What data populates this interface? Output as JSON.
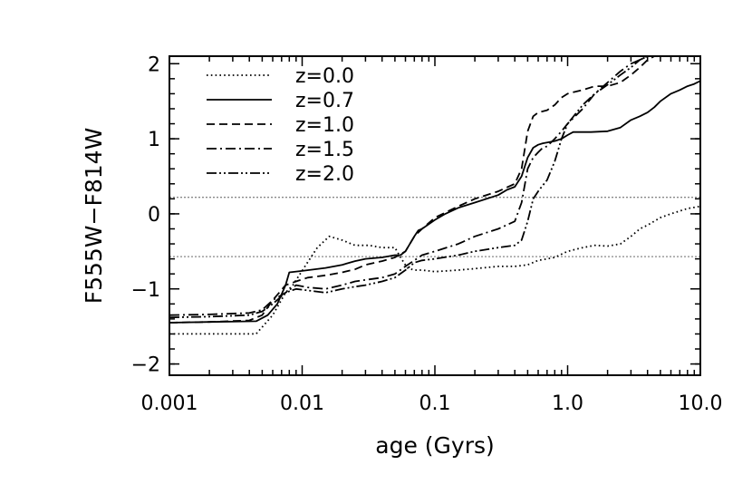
{
  "chart_data": {
    "type": "line",
    "title": "",
    "xlabel": "age (Gyrs)",
    "ylabel": "F555W−F814W",
    "xscale": "log",
    "xlim": [
      0.001,
      10.0
    ],
    "ylim": [
      -2.15,
      2.1
    ],
    "xticks": [
      {
        "value": 0.001,
        "label": "0.001"
      },
      {
        "value": 0.01,
        "label": "0.01"
      },
      {
        "value": 0.1,
        "label": "0.1"
      },
      {
        "value": 1.0,
        "label": "1.0"
      },
      {
        "value": 10.0,
        "label": "10.0"
      }
    ],
    "yticks": [
      {
        "value": -2,
        "label": "−2"
      },
      {
        "value": -1,
        "label": "−1"
      },
      {
        "value": 0,
        "label": "0"
      },
      {
        "value": 1,
        "label": "1"
      },
      {
        "value": 2,
        "label": "2"
      }
    ],
    "reference_lines": [
      {
        "y": 0.22,
        "style": "dotted",
        "color": "#888888"
      },
      {
        "y": -0.57,
        "style": "dotted",
        "color": "#888888"
      }
    ],
    "legend_position": "top-left",
    "series": [
      {
        "name": "z=0.0",
        "dash": "dotted",
        "x": [
          0.001,
          0.002,
          0.0045,
          0.006,
          0.0075,
          0.0085,
          0.0105,
          0.013,
          0.016,
          0.02,
          0.025,
          0.032,
          0.04,
          0.05,
          0.056,
          0.062,
          0.07,
          0.08,
          0.1,
          0.15,
          0.2,
          0.3,
          0.4,
          0.5,
          0.6,
          0.7,
          0.8,
          1.0,
          1.3,
          1.6,
          2.0,
          2.5,
          3.0,
          3.5,
          4.0,
          5.0,
          6.0,
          8.0,
          10.0
        ],
        "y": [
          -1.6,
          -1.6,
          -1.6,
          -1.35,
          -1.05,
          -0.95,
          -0.7,
          -0.45,
          -0.3,
          -0.35,
          -0.42,
          -0.42,
          -0.45,
          -0.45,
          -0.6,
          -0.72,
          -0.75,
          -0.75,
          -0.77,
          -0.75,
          -0.73,
          -0.7,
          -0.7,
          -0.68,
          -0.62,
          -0.6,
          -0.58,
          -0.5,
          -0.45,
          -0.42,
          -0.43,
          -0.4,
          -0.3,
          -0.2,
          -0.15,
          -0.05,
          0.0,
          0.07,
          0.1
        ]
      },
      {
        "name": "z=0.7",
        "dash": "solid",
        "x": [
          0.001,
          0.002,
          0.0045,
          0.0055,
          0.0065,
          0.0075,
          0.008,
          0.01,
          0.015,
          0.02,
          0.025,
          0.03,
          0.04,
          0.05,
          0.055,
          0.06,
          0.07,
          0.075,
          0.08,
          0.1,
          0.12,
          0.15,
          0.2,
          0.3,
          0.35,
          0.4,
          0.45,
          0.5,
          0.55,
          0.6,
          0.65,
          0.7,
          0.8,
          0.9,
          1.0,
          1.1,
          1.5,
          2.0,
          2.5,
          3.0,
          3.5,
          4.0,
          4.5,
          5.0,
          6.0,
          7.0,
          8.0,
          9.0,
          10.0
        ],
        "y": [
          -1.45,
          -1.44,
          -1.43,
          -1.35,
          -1.2,
          -0.95,
          -0.78,
          -0.76,
          -0.72,
          -0.68,
          -0.63,
          -0.6,
          -0.58,
          -0.55,
          -0.55,
          -0.5,
          -0.3,
          -0.22,
          -0.2,
          -0.08,
          0.0,
          0.08,
          0.15,
          0.25,
          0.32,
          0.36,
          0.5,
          0.75,
          0.88,
          0.92,
          0.94,
          0.95,
          0.97,
          1.0,
          1.05,
          1.09,
          1.09,
          1.1,
          1.15,
          1.25,
          1.3,
          1.35,
          1.42,
          1.5,
          1.6,
          1.65,
          1.7,
          1.73,
          1.77
        ]
      },
      {
        "name": "z=1.0",
        "dash": "dashed",
        "x": [
          0.001,
          0.002,
          0.004,
          0.005,
          0.006,
          0.0075,
          0.009,
          0.011,
          0.015,
          0.02,
          0.025,
          0.03,
          0.04,
          0.05,
          0.06,
          0.07,
          0.08,
          0.1,
          0.15,
          0.2,
          0.3,
          0.4,
          0.45,
          0.5,
          0.55,
          0.6,
          0.7,
          0.8,
          0.9,
          1.0,
          1.1,
          1.3,
          1.6,
          2.0,
          2.5,
          3.0,
          3.5,
          4.0,
          4.5,
          5.0
        ],
        "y": [
          -1.45,
          -1.44,
          -1.42,
          -1.35,
          -1.15,
          -0.95,
          -0.9,
          -0.85,
          -0.82,
          -0.78,
          -0.74,
          -0.68,
          -0.63,
          -0.58,
          -0.5,
          -0.3,
          -0.2,
          -0.05,
          0.1,
          0.2,
          0.3,
          0.4,
          0.6,
          1.1,
          1.3,
          1.35,
          1.38,
          1.45,
          1.55,
          1.6,
          1.62,
          1.65,
          1.7,
          1.7,
          1.75,
          1.85,
          1.95,
          2.05,
          2.1,
          2.1
        ]
      },
      {
        "name": "z=1.5",
        "dash": "dashdot",
        "x": [
          0.001,
          0.002,
          0.004,
          0.005,
          0.006,
          0.0075,
          0.009,
          0.011,
          0.015,
          0.02,
          0.025,
          0.03,
          0.04,
          0.05,
          0.06,
          0.08,
          0.1,
          0.15,
          0.2,
          0.3,
          0.4,
          0.45,
          0.5,
          0.55,
          0.6,
          0.65,
          0.7,
          0.8,
          0.9,
          1.0,
          1.3,
          1.6,
          2.0,
          2.5,
          3.0,
          3.5,
          4.0,
          4.5
        ],
        "y": [
          -1.35,
          -1.34,
          -1.32,
          -1.28,
          -1.15,
          -1.05,
          -0.95,
          -0.98,
          -1.0,
          -0.95,
          -0.9,
          -0.88,
          -0.85,
          -0.8,
          -0.7,
          -0.55,
          -0.5,
          -0.4,
          -0.3,
          -0.2,
          -0.1,
          0.15,
          0.6,
          0.75,
          0.82,
          0.88,
          0.9,
          1.0,
          1.1,
          1.2,
          1.4,
          1.6,
          1.75,
          1.9,
          2.0,
          2.05,
          2.1,
          2.1
        ]
      },
      {
        "name": "z=2.0",
        "dash": "dashdotdot",
        "x": [
          0.001,
          0.002,
          0.004,
          0.005,
          0.006,
          0.0075,
          0.009,
          0.011,
          0.015,
          0.02,
          0.025,
          0.03,
          0.04,
          0.05,
          0.06,
          0.07,
          0.08,
          0.1,
          0.15,
          0.2,
          0.3,
          0.4,
          0.45,
          0.5,
          0.55,
          0.6,
          0.65,
          0.7,
          0.8,
          0.9,
          1.0,
          1.3,
          1.6,
          2.0,
          2.5,
          3.0,
          3.5,
          4.0
        ],
        "y": [
          -1.38,
          -1.37,
          -1.35,
          -1.3,
          -1.2,
          -1.05,
          -1.0,
          -1.02,
          -1.05,
          -1.0,
          -0.97,
          -0.95,
          -0.9,
          -0.85,
          -0.75,
          -0.65,
          -0.62,
          -0.6,
          -0.55,
          -0.5,
          -0.45,
          -0.42,
          -0.35,
          -0.1,
          0.2,
          0.3,
          0.38,
          0.45,
          0.7,
          1.0,
          1.2,
          1.45,
          1.6,
          1.72,
          1.85,
          1.95,
          2.05,
          2.1
        ]
      }
    ]
  }
}
